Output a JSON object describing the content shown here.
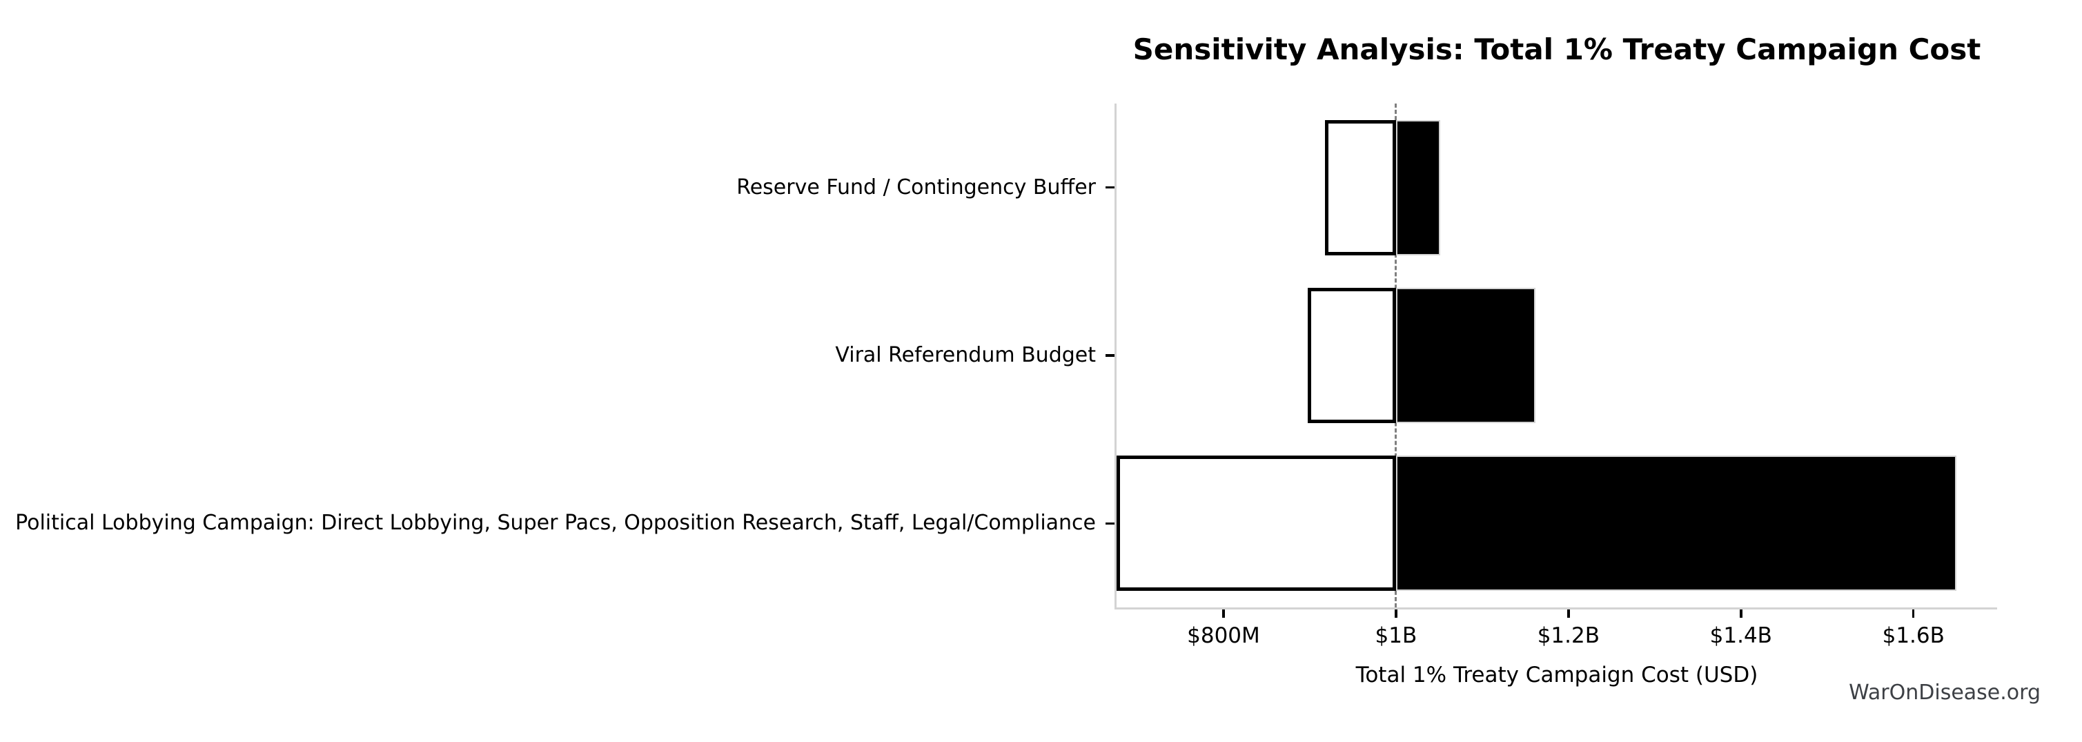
{
  "chart_data": {
    "type": "bar",
    "variant": "tornado-sensitivity",
    "title": "Sensitivity Analysis: Total 1% Treaty Campaign Cost",
    "xlabel": "Total 1% Treaty Campaign Cost (USD)",
    "unit": "millions USD",
    "baseline": 1000,
    "xlim": [
      676,
      1697
    ],
    "x_ticks": [
      {
        "value": 800,
        "label": "$800M"
      },
      {
        "value": 1000,
        "label": "$1B"
      },
      {
        "value": 1200,
        "label": "$1.2B"
      },
      {
        "value": 1400,
        "label": "$1.4B"
      },
      {
        "value": 1600,
        "label": "$1.6B"
      }
    ],
    "bars": [
      {
        "label": "Reserve Fund / Contingency Buffer",
        "low": 918,
        "high": 1051
      },
      {
        "label": "Viral Referendum Budget",
        "low": 898,
        "high": 1162
      },
      {
        "label": "Political Lobbying Campaign: Direct Lobbying, Super Pacs, Opposition Research, Staff, Legal/Compliance",
        "low": 676,
        "high": 1650
      }
    ],
    "grid": false,
    "legend": null,
    "colors": {
      "low_fill": "#ffffff",
      "low_edge": "#000000",
      "high_fill": "#000000",
      "high_edge": "#d3d3d3",
      "baseline_line": "#7f7f7f",
      "spine": "#d3d3d3",
      "tick_mark": "#000000",
      "text": "#000000",
      "watermark": "#3d4045"
    },
    "watermark": "WarOnDisease.org"
  }
}
